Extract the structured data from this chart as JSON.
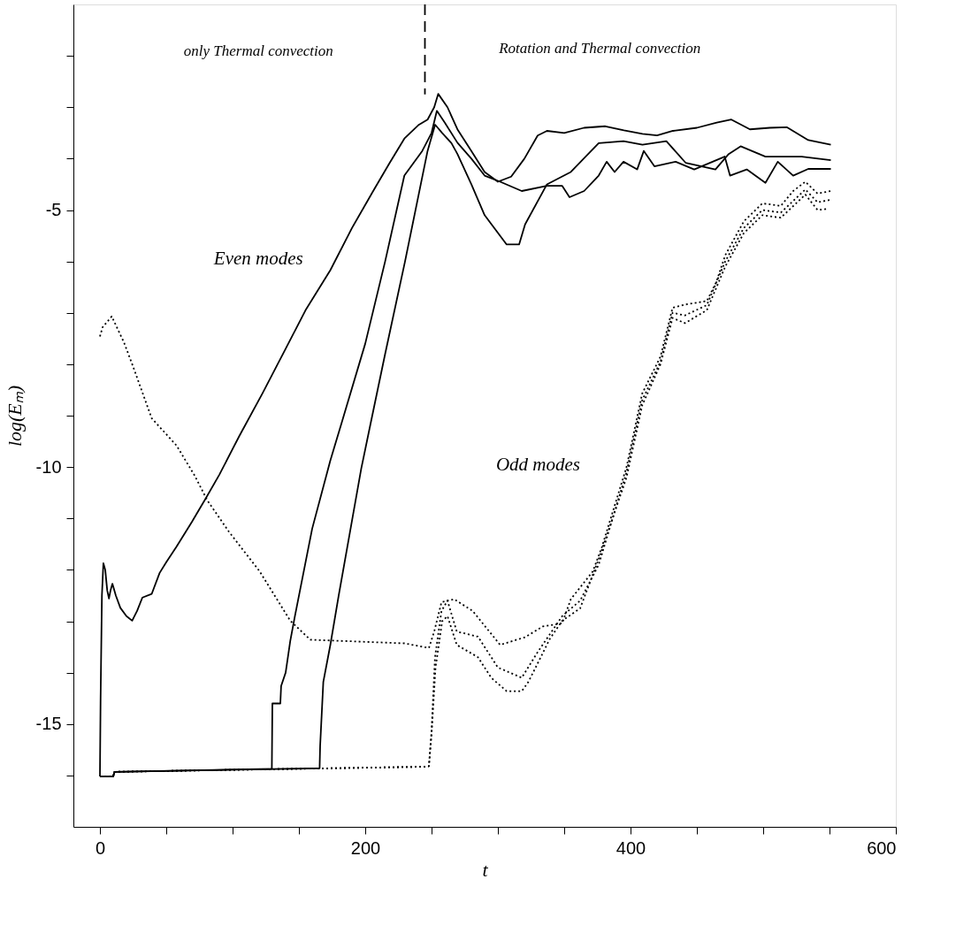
{
  "chart_data": {
    "type": "line",
    "xlabel": "t",
    "ylabel": "log(Eₘ)",
    "xlim": [
      -20,
      600
    ],
    "ylim": [
      -17,
      -1
    ],
    "xticks": [
      0,
      {
        "value": 50,
        "label": null
      },
      {
        "value": 100,
        "label": null
      },
      {
        "value": 150,
        "label": null
      },
      200,
      {
        "value": 250,
        "label": null
      },
      {
        "value": 300,
        "label": null
      },
      {
        "value": 350,
        "label": null
      },
      400,
      {
        "value": 450,
        "label": null
      },
      {
        "value": 500,
        "label": null
      },
      {
        "value": 550,
        "label": null
      },
      600
    ],
    "yticks": [
      {
        "value": -16,
        "label": null
      },
      -15,
      {
        "value": -14,
        "label": null
      },
      {
        "value": -13,
        "label": null
      },
      {
        "value": -12,
        "label": null
      },
      {
        "value": -11,
        "label": null
      },
      -10,
      {
        "value": -9,
        "label": null
      },
      {
        "value": -8,
        "label": null
      },
      {
        "value": -7,
        "label": null
      },
      {
        "value": -6,
        "label": null
      },
      -5,
      {
        "value": -4,
        "label": null
      },
      {
        "value": -3,
        "label": null
      },
      {
        "value": -2,
        "label": null
      }
    ],
    "annotations": [
      "only Thermal convection",
      "Rotation and Thermal convection",
      "Even modes",
      "Odd  modes"
    ],
    "series": [
      {
        "color": "#000000",
        "line_style": "solid",
        "x": [
          0,
          0.5,
          1.5,
          2.6,
          4,
          5.5,
          6.8,
          8,
          9.4,
          12,
          15.4,
          20,
          24.3,
          28,
          32,
          39,
          45,
          50,
          57.7,
          69.3,
          80,
          90,
          105,
          122.7,
          140,
          155,
          173.7,
          190,
          206,
          218,
          229.5,
          240,
          247,
          252,
          255,
          262,
          269.5,
          280,
          290,
          300,
          310,
          320,
          330,
          337,
          350,
          365,
          381,
          395,
          409,
          420,
          432,
          450,
          465,
          476,
          490,
          505,
          518,
          534,
          551
        ],
        "values": [
          -16.02,
          -14.5,
          -12.5,
          -11.87,
          -12.0,
          -12.4,
          -12.56,
          -12.4,
          -12.27,
          -12.5,
          -12.74,
          -12.9,
          -12.99,
          -12.8,
          -12.54,
          -12.47,
          -12.06,
          -11.85,
          -11.55,
          -11.07,
          -10.6,
          -10.15,
          -9.4,
          -8.56,
          -7.7,
          -6.95,
          -6.17,
          -5.35,
          -4.63,
          -4.1,
          -3.61,
          -3.35,
          -3.24,
          -3.0,
          -2.74,
          -3.0,
          -3.43,
          -3.85,
          -4.26,
          -4.45,
          -4.35,
          -4.0,
          -3.55,
          -3.46,
          -3.5,
          -3.4,
          -3.37,
          -3.45,
          -3.52,
          -3.55,
          -3.46,
          -3.4,
          -3.3,
          -3.24,
          -3.43,
          -3.4,
          -3.39,
          -3.64,
          -3.73
        ]
      },
      {
        "color": "#000000",
        "line_style": "solid",
        "x": [
          0,
          10,
          11,
          129.6,
          130,
          136,
          136.6,
          140,
          143.5,
          147,
          160,
          173.6,
          182,
          200,
          215,
          229.5,
          243,
          250,
          254,
          260,
          269.5,
          280,
          290,
          301.7,
          318,
          337,
          348.5,
          354,
          365,
          376,
          382,
          388,
          394.7,
          405,
          410,
          418,
          434,
          448,
          471,
          475,
          487.6,
          501.7,
          511,
          522.6,
          534,
          551
        ],
        "values": [
          -16.02,
          -16.02,
          -15.93,
          -15.87,
          -14.6,
          -14.6,
          -14.26,
          -14.0,
          -13.38,
          -12.9,
          -11.2,
          -9.88,
          -9.16,
          -7.6,
          -6.0,
          -4.33,
          -3.85,
          -3.5,
          -3.07,
          -3.3,
          -3.69,
          -4.0,
          -4.33,
          -4.45,
          -4.63,
          -4.53,
          -4.53,
          -4.75,
          -4.63,
          -4.33,
          -4.06,
          -4.26,
          -4.06,
          -4.21,
          -3.85,
          -4.15,
          -4.06,
          -4.21,
          -3.96,
          -4.33,
          -4.21,
          -4.47,
          -4.06,
          -4.33,
          -4.2,
          -4.2
        ]
      },
      {
        "color": "#000000",
        "line_style": "solid",
        "x": [
          0,
          10,
          11,
          165.6,
          166,
          168.4,
          173.7,
          180,
          197,
          204,
          215,
          230,
          247,
          252.7,
          258,
          265,
          269.5,
          280,
          290,
          306.6,
          316,
          320.5,
          337,
          355,
          376,
          394.7,
          409,
          427,
          441.5,
          464,
          474,
          483,
          501.7,
          529,
          551
        ],
        "values": [
          -16.02,
          -16.02,
          -15.93,
          -15.86,
          -15.43,
          -14.18,
          -13.46,
          -12.5,
          -10.03,
          -9.16,
          -7.8,
          -6.0,
          -3.85,
          -3.34,
          -3.5,
          -3.7,
          -3.91,
          -4.5,
          -5.1,
          -5.67,
          -5.67,
          -5.28,
          -4.5,
          -4.26,
          -3.7,
          -3.66,
          -3.73,
          -3.66,
          -4.08,
          -4.21,
          -3.91,
          -3.76,
          -3.96,
          -3.96,
          -4.03
        ]
      },
      {
        "color": "#000000",
        "line_style": "dotted",
        "x": [
          0,
          2,
          8.9,
          18.2,
          25.2,
          39,
          57.7,
          71.5,
          81,
          97,
          120.4,
          143.5,
          158.6,
          229.5,
          248,
          252,
          257.5,
          267,
          281,
          301.7,
          320.5,
          334,
          348.5,
          355,
          371.6,
          378.5,
          397,
          408.8,
          422.6,
          431.7,
          441,
          457.5,
          464.5,
          471.4,
          485.4,
          499.4,
          513.3,
          522.6,
          531.8,
          541,
          551
        ],
        "values": [
          -7.46,
          -7.28,
          -7.07,
          -7.58,
          -8.06,
          -9.05,
          -9.58,
          -10.17,
          -10.65,
          -11.25,
          -12.03,
          -12.99,
          -13.36,
          -13.43,
          -13.52,
          -13.2,
          -12.63,
          -12.57,
          -12.8,
          -13.46,
          -13.31,
          -13.1,
          -13.04,
          -12.57,
          -12.03,
          -11.55,
          -10.0,
          -8.57,
          -7.85,
          -6.9,
          -6.84,
          -6.77,
          -6.41,
          -5.88,
          -5.22,
          -4.87,
          -4.92,
          -4.63,
          -4.45,
          -4.68,
          -4.63
        ]
      },
      {
        "color": "#000000",
        "line_style": "dotted",
        "x": [
          0,
          10,
          11,
          245,
          248,
          250,
          252.6,
          257.5,
          262,
          269,
          285,
          300,
          318,
          330,
          348.5,
          362,
          376,
          397,
          408.8,
          422.6,
          431.7,
          441,
          457.5,
          471.4,
          485.4,
          499.4,
          513.3,
          531.8,
          541,
          551
        ],
        "values": [
          -16.02,
          -16.02,
          -15.93,
          -15.83,
          -15.82,
          -15.13,
          -13.7,
          -12.8,
          -12.6,
          -13.2,
          -13.3,
          -13.9,
          -14.1,
          -13.6,
          -12.9,
          -12.6,
          -11.9,
          -10.1,
          -8.7,
          -7.95,
          -7.0,
          -7.05,
          -6.85,
          -6.0,
          -5.35,
          -5.0,
          -5.05,
          -4.6,
          -4.85,
          -4.8
        ]
      },
      {
        "color": "#000000",
        "line_style": "dotted",
        "x": [
          0,
          10,
          11,
          245,
          248,
          250,
          253,
          258,
          262,
          269,
          285,
          295,
          306.6,
          318,
          323,
          330,
          339,
          348.5,
          362,
          376,
          397,
          408.8,
          422.6,
          431.7,
          441,
          457.5,
          471.4,
          485.4,
          499.4,
          513.3,
          531.8,
          541,
          548
        ],
        "values": [
          -16.02,
          -16.02,
          -15.93,
          -15.83,
          -15.82,
          -15.2,
          -13.9,
          -13.0,
          -12.9,
          -13.46,
          -13.7,
          -14.1,
          -14.36,
          -14.36,
          -14.18,
          -13.82,
          -13.35,
          -12.99,
          -12.75,
          -11.79,
          -10.2,
          -8.8,
          -8.0,
          -7.1,
          -7.2,
          -6.95,
          -6.1,
          -5.45,
          -5.1,
          -5.15,
          -4.7,
          -5.0,
          -4.98
        ]
      },
      {
        "color": "#000000",
        "line_style": "dashed",
        "x": [
          245,
          245
        ],
        "values": [
          -1,
          -2.75
        ]
      }
    ]
  }
}
